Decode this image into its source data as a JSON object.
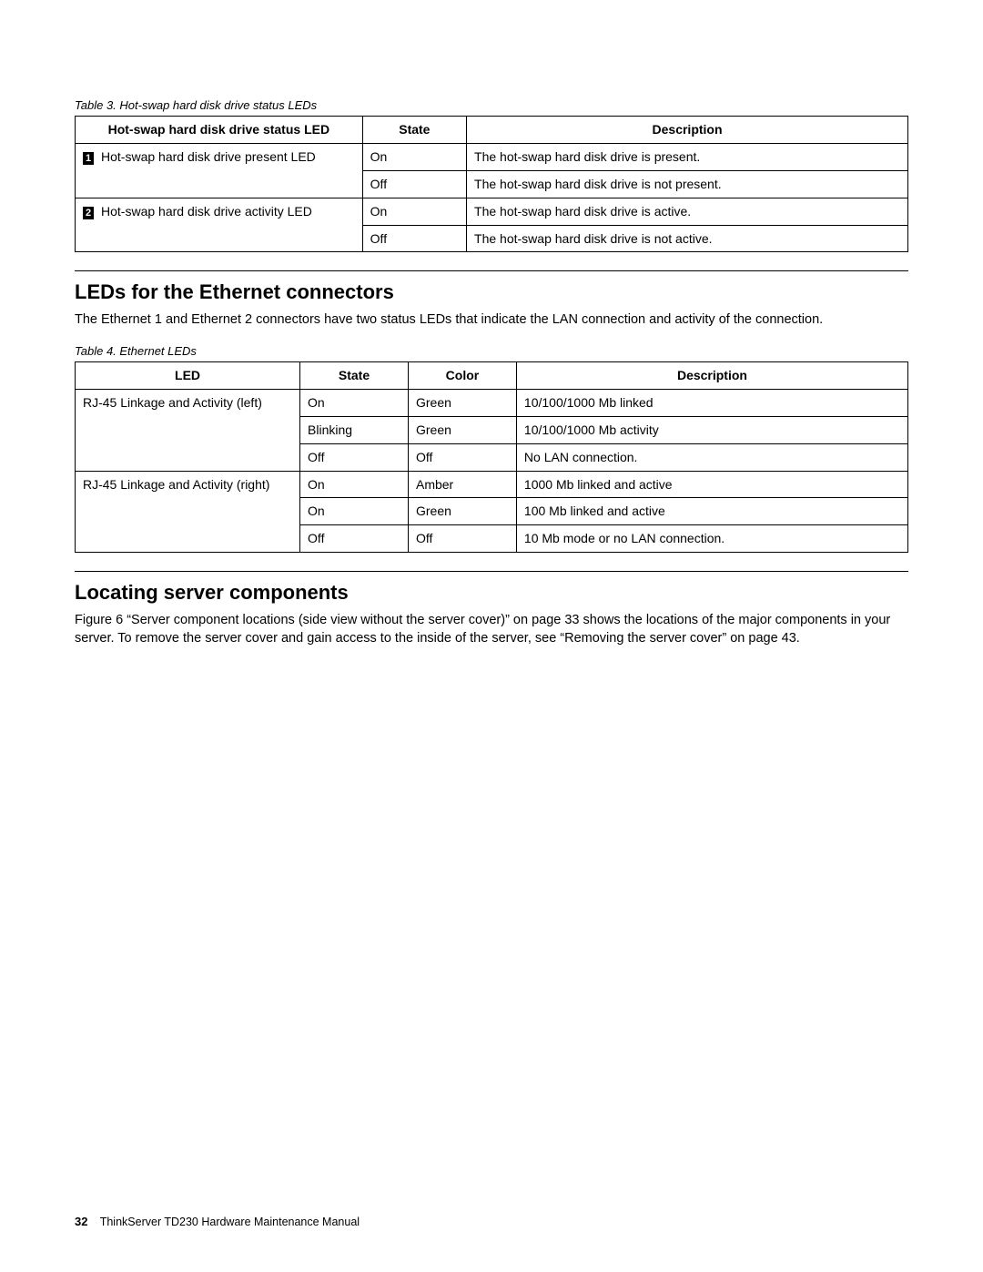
{
  "table3": {
    "caption": "Table 3.  Hot-swap hard disk drive status LEDs",
    "headers": [
      "Hot-swap hard disk drive status LED",
      "State",
      "Description"
    ],
    "col_widths": [
      "34.5%",
      "12.5%",
      "53%"
    ],
    "rows": [
      {
        "marker": "1",
        "led": " Hot-swap hard disk drive present LED",
        "state": "On",
        "desc": "The hot-swap hard disk drive is present.",
        "rowspan_led": 2
      },
      {
        "marker": "",
        "led": "",
        "state": "Off",
        "desc": "The hot-swap hard disk drive is not present."
      },
      {
        "marker": "2",
        "led": " Hot-swap hard disk drive activity LED",
        "state": "On",
        "desc": "The hot-swap hard disk drive is active.",
        "rowspan_led": 2
      },
      {
        "marker": "",
        "led": "",
        "state": "Off",
        "desc": "The hot-swap hard disk drive is not active."
      }
    ]
  },
  "section1": {
    "heading": "LEDs for the Ethernet connectors",
    "para": "The Ethernet 1 and Ethernet 2 connectors have two status LEDs that indicate the LAN connection and activity of the connection."
  },
  "table4": {
    "caption": "Table 4.  Ethernet LEDs",
    "headers": [
      "LED",
      "State",
      "Color",
      "Description"
    ],
    "col_widths": [
      "27%",
      "13%",
      "13%",
      "47%"
    ],
    "rows": [
      {
        "led": "RJ-45 Linkage and Activity (left)",
        "state": "On",
        "color": "Green",
        "desc": "10/100/1000 Mb linked",
        "rowspan_led": 3
      },
      {
        "led": "",
        "state": "Blinking",
        "color": "Green",
        "desc": "10/100/1000 Mb activity"
      },
      {
        "led": "",
        "state": "Off",
        "color": "Off",
        "desc": "No LAN connection."
      },
      {
        "led": "RJ-45 Linkage and Activity (right)",
        "state": "On",
        "color": "Amber",
        "desc": "1000 Mb linked and active",
        "rowspan_led": 3
      },
      {
        "led": "",
        "state": "On",
        "color": "Green",
        "desc": "100 Mb linked and active"
      },
      {
        "led": "",
        "state": "Off",
        "color": "Off",
        "desc": "10 Mb mode or no LAN connection."
      }
    ]
  },
  "section2": {
    "heading": "Locating server components",
    "para": "Figure 6 “Server component locations (side view without the server cover)” on page 33 shows the locations of the major components in your server. To remove the server cover and gain access to the inside of the server, see “Removing the server cover” on page 43."
  },
  "footer": {
    "page_number": "32",
    "title": "ThinkServer TD230 Hardware Maintenance Manual"
  }
}
